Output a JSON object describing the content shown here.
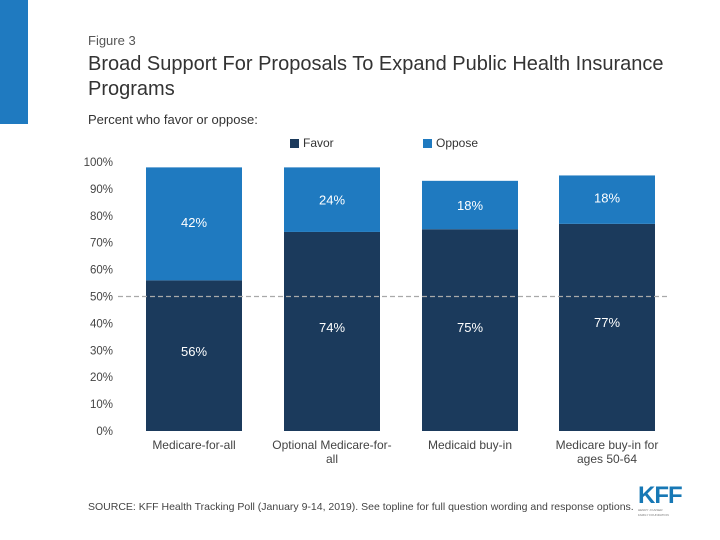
{
  "figure_label": "Figure 3",
  "title": "Broad Support For Proposals To Expand Public Health Insurance Programs",
  "subtitle": "Percent who favor or oppose:",
  "colors": {
    "favor": "#1b3a5c",
    "oppose": "#1f7ac0",
    "accent": "#1f7ac0",
    "reference_line": "#a9a9a9"
  },
  "source": "SOURCE: KFF Health Tracking Poll (January 9-14, 2019). See topline for full question wording and response options.",
  "logo": {
    "text": "KFF",
    "tagline": [
      "HENRY J KAISER",
      "FAMILY FOUNDATION"
    ]
  },
  "chart_data": {
    "type": "bar",
    "stacked": true,
    "title": "Broad Support For Proposals To Expand Public Health Insurance Programs",
    "ylim": [
      0,
      100
    ],
    "yticks": [
      "0%",
      "10%",
      "20%",
      "30%",
      "40%",
      "50%",
      "60%",
      "70%",
      "80%",
      "90%",
      "100%"
    ],
    "reference_line": 50,
    "categories": [
      [
        "Medicare-for-all"
      ],
      [
        "Optional Medicare-for-",
        "all"
      ],
      [
        "Medicaid buy-in"
      ],
      [
        "Medicare buy-in for",
        "ages 50-64"
      ]
    ],
    "series": [
      {
        "name": "Favor",
        "values": [
          56,
          74,
          75,
          77
        ],
        "labels": [
          "56%",
          "74%",
          "75%",
          "77%"
        ]
      },
      {
        "name": "Oppose",
        "values": [
          42,
          24,
          18,
          18
        ],
        "labels": [
          "42%",
          "24%",
          "18%",
          "18%"
        ]
      }
    ]
  }
}
